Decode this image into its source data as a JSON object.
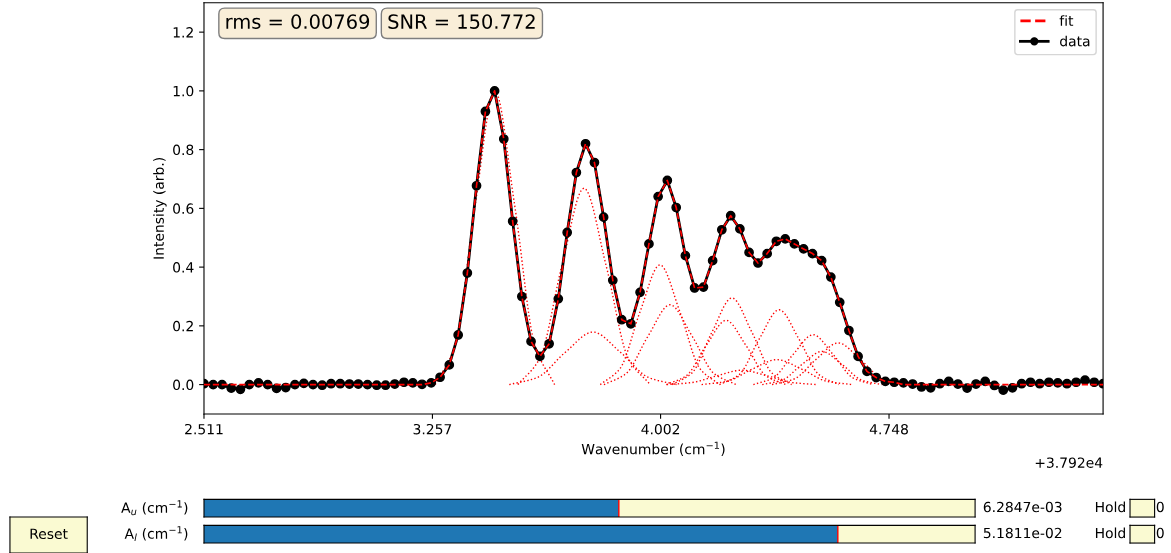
{
  "chart_data": [
    {
      "type": "line",
      "xlabel": "Wavenumber (cm$^{−1}$)",
      "ylabel": "Intensity (arb.)",
      "xlim": [
        2.511,
        5.447
      ],
      "ylim": [
        -0.1,
        1.3
      ],
      "xticks": [
        2.511,
        3.257,
        4.002,
        4.748
      ],
      "yticks": [
        {
          "value": 0,
          "label": "0.0"
        },
        0.2,
        0.4,
        0.6,
        0.8,
        {
          "value": 1,
          "label": "1.0"
        },
        1.2
      ],
      "grid": false,
      "legend": "top right",
      "annotations": [
        "rms = 0.00769",
        "SNR = 150.772",
        "+3.792e4"
      ],
      "series": [
        {
          "color": "#ff0000",
          "line_style": "dotted",
          "marker": "none",
          "x": [
            3.266,
            3.331,
            3.396,
            3.461,
            3.526,
            3.591,
            3.656
          ],
          "values": [
            0,
            0.135,
            0.607,
            1.0,
            0.607,
            0.135,
            0
          ]
        },
        {
          "color": "#ff0000",
          "line_style": "dotted",
          "marker": "none",
          "x": [
            3.536,
            3.608,
            3.68,
            3.752,
            3.824,
            3.896,
            3.968
          ],
          "values": [
            0,
            0.09,
            0.406,
            0.669,
            0.406,
            0.09,
            0
          ]
        },
        {
          "color": "#ff0000",
          "line_style": "dotted",
          "marker": "none",
          "x": [
            3.508,
            3.599,
            3.69,
            3.781,
            3.872,
            3.963,
            4.054
          ],
          "values": [
            0,
            0.024,
            0.109,
            0.179,
            0.109,
            0.024,
            0
          ]
        },
        {
          "color": "#ff0000",
          "line_style": "dotted",
          "marker": "none",
          "x": [
            3.805,
            3.87,
            3.935,
            4.0,
            4.065,
            4.13,
            4.195
          ],
          "values": [
            0,
            0.055,
            0.248,
            0.408,
            0.248,
            0.055,
            0
          ]
        },
        {
          "color": "#ff0000",
          "line_style": "dotted",
          "marker": "none",
          "x": [
            3.817,
            3.889,
            3.961,
            4.033,
            4.105,
            4.177,
            4.249
          ],
          "values": [
            0,
            0.037,
            0.165,
            0.272,
            0.165,
            0.037,
            0
          ]
        },
        {
          "color": "#ff0000",
          "line_style": "dotted",
          "marker": "none",
          "x": [
            4.04,
            4.105,
            4.17,
            4.235,
            4.3,
            4.365,
            4.43
          ],
          "values": [
            0,
            0.04,
            0.179,
            0.295,
            0.179,
            0.04,
            0
          ]
        },
        {
          "color": "#ff0000",
          "line_style": "dotted",
          "marker": "none",
          "x": [
            4.021,
            4.086,
            4.151,
            4.216,
            4.281,
            4.346,
            4.411
          ],
          "values": [
            0,
            0.03,
            0.133,
            0.219,
            0.133,
            0.03,
            0
          ]
        },
        {
          "color": "#ff0000",
          "line_style": "dotted",
          "marker": "none",
          "x": [
            4.194,
            4.259,
            4.324,
            4.389,
            4.454,
            4.519,
            4.584
          ],
          "values": [
            0,
            0.034,
            0.155,
            0.255,
            0.155,
            0.034,
            0
          ]
        },
        {
          "color": "#ff0000",
          "line_style": "dotted",
          "marker": "none",
          "x": [
            4.305,
            4.37,
            4.435,
            4.5,
            4.565,
            4.63,
            4.695
          ],
          "values": [
            0,
            0.023,
            0.103,
            0.17,
            0.103,
            0.023,
            0
          ]
        },
        {
          "color": "#ff0000",
          "line_style": "dotted",
          "marker": "none",
          "x": [
            4.366,
            4.438,
            4.51,
            4.582,
            4.654,
            4.726,
            4.798
          ],
          "values": [
            0,
            0.019,
            0.086,
            0.142,
            0.086,
            0.019,
            0
          ]
        },
        {
          "color": "#ff0000",
          "line_style": "dotted",
          "marker": "none",
          "x": [
            4.334,
            4.399,
            4.464,
            4.529,
            4.594,
            4.659,
            4.724
          ],
          "values": [
            0,
            0.015,
            0.069,
            0.113,
            0.069,
            0.015,
            0
          ]
        },
        {
          "color": "#ff0000",
          "line_style": "dotted",
          "marker": "none",
          "x": [
            4.136,
            4.218,
            4.3,
            4.382,
            4.464,
            4.546,
            4.628
          ],
          "values": [
            0,
            0.011,
            0.052,
            0.085,
            0.052,
            0.011,
            0
          ]
        },
        {
          "color": "#ff0000",
          "line_style": "dotted",
          "marker": "none",
          "x": [
            4.022,
            4.104,
            4.186,
            4.268,
            4.35,
            4.432,
            4.514
          ],
          "values": [
            0,
            0.007,
            0.03,
            0.049,
            0.03,
            0.007,
            0
          ]
        },
        {
          "name": "fit",
          "color": "#ff0000",
          "line_style": "dashed",
          "marker": "none",
          "values": [
            0,
            0,
            0,
            0,
            0,
            0,
            0,
            0,
            0,
            0,
            0,
            0,
            0,
            0,
            0,
            0,
            0,
            0,
            0,
            0,
            0,
            0,
            0,
            0,
            0,
            0.006,
            0.025,
            0.067,
            0.169,
            0.38,
            0.677,
            0.93,
            1.0,
            0.836,
            0.556,
            0.3,
            0.147,
            0.096,
            0.139,
            0.292,
            0.518,
            0.722,
            0.82,
            0.756,
            0.57,
            0.355,
            0.221,
            0.207,
            0.314,
            0.479,
            0.64,
            0.695,
            0.603,
            0.439,
            0.329,
            0.332,
            0.422,
            0.527,
            0.575,
            0.53,
            0.45,
            0.414,
            0.446,
            0.488,
            0.496,
            0.479,
            0.462,
            0.446,
            0.422,
            0.366,
            0.28,
            0.184,
            0.096,
            0.045,
            0.024,
            0.011,
            0.008,
            0,
            0,
            0,
            0,
            0,
            0,
            0,
            0,
            0,
            0,
            0,
            0,
            0,
            0,
            0,
            0,
            0,
            0,
            0,
            0,
            0,
            0,
            0
          ]
        },
        {
          "name": "data",
          "color": "#000000",
          "line_style": "solid",
          "marker": "circle",
          "values": [
            0.003,
            0,
            0,
            -0.012,
            -0.016,
            0,
            0.006,
            0,
            -0.013,
            -0.01,
            0,
            0.004,
            0,
            -0.002,
            0.003,
            0.003,
            0.002,
            0.002,
            0,
            -0.002,
            -0.002,
            0.002,
            0.008,
            0.006,
            0.001,
            0.006,
            0.025,
            0.067,
            0.169,
            0.38,
            0.677,
            0.93,
            1.0,
            0.836,
            0.556,
            0.3,
            0.147,
            0.096,
            0.139,
            0.292,
            0.518,
            0.722,
            0.82,
            0.756,
            0.57,
            0.355,
            0.221,
            0.207,
            0.314,
            0.479,
            0.64,
            0.695,
            0.603,
            0.439,
            0.329,
            0.332,
            0.422,
            0.527,
            0.575,
            0.53,
            0.45,
            0.414,
            0.446,
            0.488,
            0.496,
            0.479,
            0.462,
            0.446,
            0.422,
            0.366,
            0.28,
            0.184,
            0.096,
            0.045,
            0.024,
            0.011,
            0.008,
            0.006,
            0.002,
            -0.008,
            -0.011,
            0.003,
            0.011,
            0.002,
            -0.012,
            0.002,
            0.011,
            -0.003,
            -0.019,
            -0.011,
            0.003,
            0.008,
            0.003,
            0.008,
            0.006,
            0.003,
            0.008,
            0.015,
            0.008,
            0.003
          ]
        }
      ],
      "x": [
        2.511,
        2.541,
        2.57,
        2.6,
        2.63,
        2.659,
        2.689,
        2.719,
        2.748,
        2.778,
        2.808,
        2.837,
        2.867,
        2.897,
        2.926,
        2.956,
        2.986,
        3.015,
        3.045,
        3.075,
        3.104,
        3.134,
        3.164,
        3.193,
        3.223,
        3.253,
        3.282,
        3.312,
        3.341,
        3.371,
        3.401,
        3.43,
        3.46,
        3.49,
        3.519,
        3.549,
        3.579,
        3.608,
        3.638,
        3.668,
        3.697,
        3.727,
        3.757,
        3.786,
        3.816,
        3.846,
        3.875,
        3.905,
        3.935,
        3.964,
        3.994,
        4.024,
        4.053,
        4.083,
        4.113,
        4.142,
        4.172,
        4.202,
        4.231,
        4.261,
        4.291,
        4.32,
        4.35,
        4.38,
        4.409,
        4.439,
        4.469,
        4.498,
        4.528,
        4.558,
        4.587,
        4.617,
        4.647,
        4.676,
        4.706,
        4.736,
        4.765,
        4.795,
        4.825,
        4.854,
        4.884,
        4.914,
        4.943,
        4.973,
        5.003,
        5.032,
        5.062,
        5.092,
        5.121,
        5.151,
        5.181,
        5.21,
        5.24,
        5.27,
        5.299,
        5.329,
        5.359,
        5.388,
        5.418,
        5.447
      ]
    },
    {
      "type": "other",
      "categories": [
        "A$_{u}$ (cm$^{−1}$)",
        "A$_{l}$ (cm$^{−1}$)"
      ],
      "value_labels": [
        "6.2847e-03",
        "5.1811e-02"
      ],
      "annotations": [
        "Reset",
        "Hold",
        "0",
        "Hold",
        "0"
      ]
    }
  ]
}
